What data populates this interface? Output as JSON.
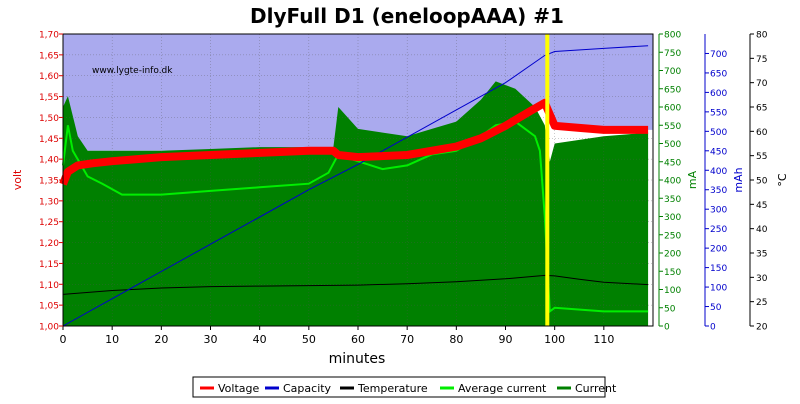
{
  "chart_data": {
    "type": "line",
    "title": "DlyFull D1 (eneloopAAA) #1",
    "watermark": "www.lygte-info.dk",
    "xlabel": "minutes",
    "xlim": [
      0,
      120
    ],
    "x_ticks": [
      "0",
      "10",
      "20",
      "30",
      "40",
      "50",
      "60",
      "70",
      "80",
      "90",
      "100",
      "110"
    ],
    "grid": true,
    "legend_position": "bottom",
    "background_upper_color": "#aaaaee",
    "background_threshold_volt": 1.42,
    "axes": {
      "volt": {
        "label": "volt",
        "range": [
          1.0,
          1.7
        ],
        "color": "#dd0000",
        "ticks": [
          "1,00",
          "1,05",
          "1,10",
          "1,15",
          "1,20",
          "1,25",
          "1,30",
          "1,35",
          "1,40",
          "1,45",
          "1,50",
          "1,55",
          "1,60",
          "1,65",
          "1,70"
        ]
      },
      "mA": {
        "label": "mA",
        "range": [
          0,
          800
        ],
        "color": "#008000",
        "ticks": [
          "0",
          "50",
          "100",
          "150",
          "200",
          "250",
          "300",
          "350",
          "400",
          "450",
          "500",
          "550",
          "600",
          "650",
          "700",
          "750",
          "800"
        ]
      },
      "mAh": {
        "label": "mAh",
        "range": [
          0,
          750
        ],
        "color": "#0000cc",
        "ticks": [
          "0",
          "50",
          "100",
          "150",
          "200",
          "250",
          "300",
          "350",
          "400",
          "450",
          "500",
          "550",
          "600",
          "650",
          "700"
        ]
      },
      "celsius": {
        "label": "°C",
        "range": [
          20,
          80
        ],
        "color": "#000000",
        "ticks": [
          "20",
          "25",
          "30",
          "35",
          "40",
          "45",
          "50",
          "55",
          "60",
          "65",
          "70",
          "75",
          "80"
        ]
      }
    },
    "charge_end_marker": {
      "x": 98.5,
      "color": "#ffff00"
    },
    "series": [
      {
        "name": "Voltage",
        "axis": "volt",
        "color": "#ff0000",
        "x": [
          0,
          1,
          3,
          6,
          10,
          20,
          30,
          40,
          50,
          55,
          56,
          60,
          70,
          80,
          85,
          90,
          95,
          98,
          100,
          105,
          110,
          119
        ],
        "y": [
          1.34,
          1.37,
          1.385,
          1.39,
          1.395,
          1.405,
          1.41,
          1.415,
          1.42,
          1.42,
          1.41,
          1.405,
          1.41,
          1.43,
          1.45,
          1.48,
          1.515,
          1.535,
          1.48,
          1.475,
          1.47,
          1.47
        ]
      },
      {
        "name": "Capacity",
        "axis": "mAh",
        "color": "#0000cc",
        "x": [
          0,
          10,
          20,
          30,
          40,
          50,
          60,
          70,
          80,
          90,
          98,
          100,
          110,
          119
        ],
        "y": [
          0,
          70,
          140,
          210,
          280,
          350,
          415,
          485,
          555,
          625,
          695,
          705,
          713,
          720
        ]
      },
      {
        "name": "Temperature",
        "axis": "celsius",
        "color": "#000000",
        "x": [
          0,
          10,
          20,
          30,
          40,
          50,
          60,
          70,
          80,
          90,
          98,
          100,
          105,
          110,
          119
        ],
        "y": [
          26.5,
          27.3,
          27.8,
          28.1,
          28.2,
          28.3,
          28.4,
          28.7,
          29.1,
          29.7,
          30.4,
          30.3,
          29.6,
          29.0,
          28.5
        ]
      },
      {
        "name": "Average current",
        "axis": "mA",
        "color": "#00ee00",
        "x": [
          0,
          1,
          2,
          5,
          8,
          12,
          20,
          30,
          40,
          50,
          54,
          56,
          58,
          65,
          70,
          75,
          80,
          85,
          88,
          92,
          96,
          97,
          98,
          99,
          100,
          110,
          119
        ],
        "y": [
          440,
          550,
          480,
          410,
          390,
          360,
          360,
          370,
          380,
          390,
          420,
          470,
          460,
          430,
          440,
          470,
          480,
          520,
          550,
          560,
          520,
          480,
          300,
          40,
          50,
          40,
          40
        ]
      },
      {
        "name": "Current",
        "axis": "mA",
        "color": "#008000",
        "x": [
          0,
          1,
          3,
          5,
          10,
          20,
          30,
          40,
          50,
          55,
          56,
          60,
          70,
          80,
          85,
          88,
          92,
          96,
          98,
          99,
          100,
          110,
          119
        ],
        "y": [
          600,
          630,
          520,
          480,
          480,
          480,
          485,
          490,
          490,
          490,
          600,
          540,
          520,
          560,
          620,
          670,
          650,
          600,
          550,
          450,
          500,
          520,
          530
        ]
      }
    ]
  }
}
